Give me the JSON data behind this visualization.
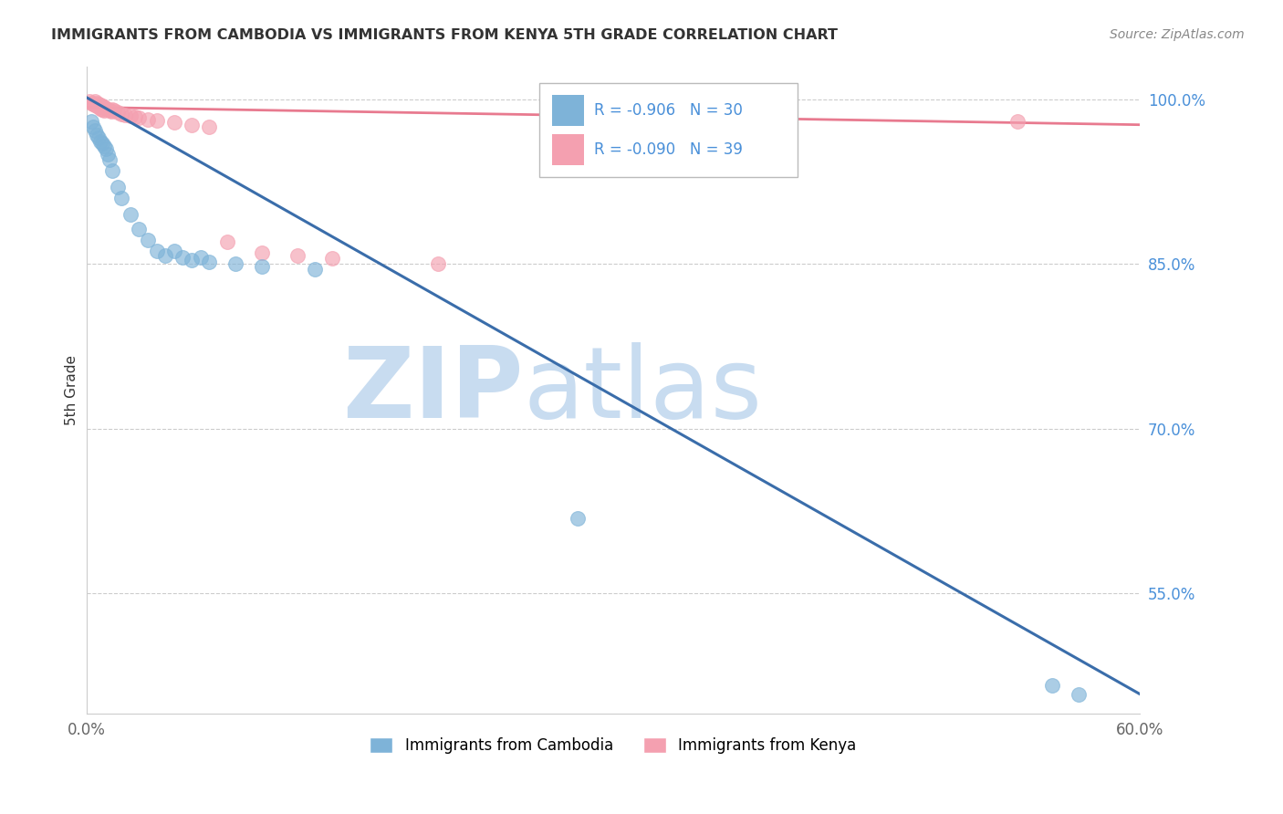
{
  "title": "IMMIGRANTS FROM CAMBODIA VS IMMIGRANTS FROM KENYA 5TH GRADE CORRELATION CHART",
  "source": "Source: ZipAtlas.com",
  "ylabel": "5th Grade",
  "xlim": [
    0.0,
    0.6
  ],
  "ylim": [
    0.44,
    1.03
  ],
  "yticks": [
    0.55,
    0.7,
    0.85,
    1.0
  ],
  "ytick_labels": [
    "55.0%",
    "70.0%",
    "85.0%",
    "100.0%"
  ],
  "cambodia_color": "#7EB3D8",
  "kenya_color": "#F4A0B0",
  "cambodia_line_color": "#3A6DAA",
  "kenya_line_color": "#E87A8F",
  "R_cambodia": -0.906,
  "N_cambodia": 30,
  "R_kenya": -0.09,
  "N_kenya": 39,
  "watermark_color": "#C8DCF0",
  "cambodia_x": [
    0.003,
    0.004,
    0.005,
    0.006,
    0.007,
    0.008,
    0.009,
    0.01,
    0.011,
    0.012,
    0.013,
    0.015,
    0.018,
    0.02,
    0.025,
    0.03,
    0.035,
    0.04,
    0.045,
    0.05,
    0.055,
    0.06,
    0.065,
    0.07,
    0.085,
    0.1,
    0.13,
    0.28,
    0.55,
    0.565
  ],
  "cambodia_y": [
    0.98,
    0.975,
    0.972,
    0.968,
    0.965,
    0.962,
    0.96,
    0.958,
    0.955,
    0.95,
    0.945,
    0.935,
    0.92,
    0.91,
    0.895,
    0.882,
    0.872,
    0.862,
    0.858,
    0.862,
    0.856,
    0.854,
    0.856,
    0.852,
    0.85,
    0.848,
    0.845,
    0.618,
    0.466,
    0.458
  ],
  "kenya_x": [
    0.002,
    0.003,
    0.004,
    0.005,
    0.005,
    0.006,
    0.006,
    0.007,
    0.007,
    0.008,
    0.008,
    0.009,
    0.009,
    0.01,
    0.01,
    0.011,
    0.012,
    0.013,
    0.014,
    0.015,
    0.016,
    0.018,
    0.02,
    0.022,
    0.025,
    0.028,
    0.03,
    0.035,
    0.04,
    0.05,
    0.06,
    0.07,
    0.08,
    0.1,
    0.12,
    0.14,
    0.2,
    0.35,
    0.53
  ],
  "kenya_y": [
    0.998,
    0.997,
    0.996,
    0.995,
    0.998,
    0.994,
    0.997,
    0.996,
    0.993,
    0.995,
    0.992,
    0.994,
    0.991,
    0.993,
    0.99,
    0.992,
    0.991,
    0.99,
    0.989,
    0.991,
    0.99,
    0.988,
    0.987,
    0.986,
    0.985,
    0.984,
    0.983,
    0.982,
    0.981,
    0.979,
    0.977,
    0.975,
    0.87,
    0.86,
    0.858,
    0.855,
    0.85,
    0.985,
    0.98
  ],
  "camb_line_x": [
    0.0,
    0.6
  ],
  "camb_line_y": [
    1.002,
    0.458
  ],
  "kenya_line_x": [
    0.0,
    0.6
  ],
  "kenya_line_y": [
    0.993,
    0.977
  ]
}
